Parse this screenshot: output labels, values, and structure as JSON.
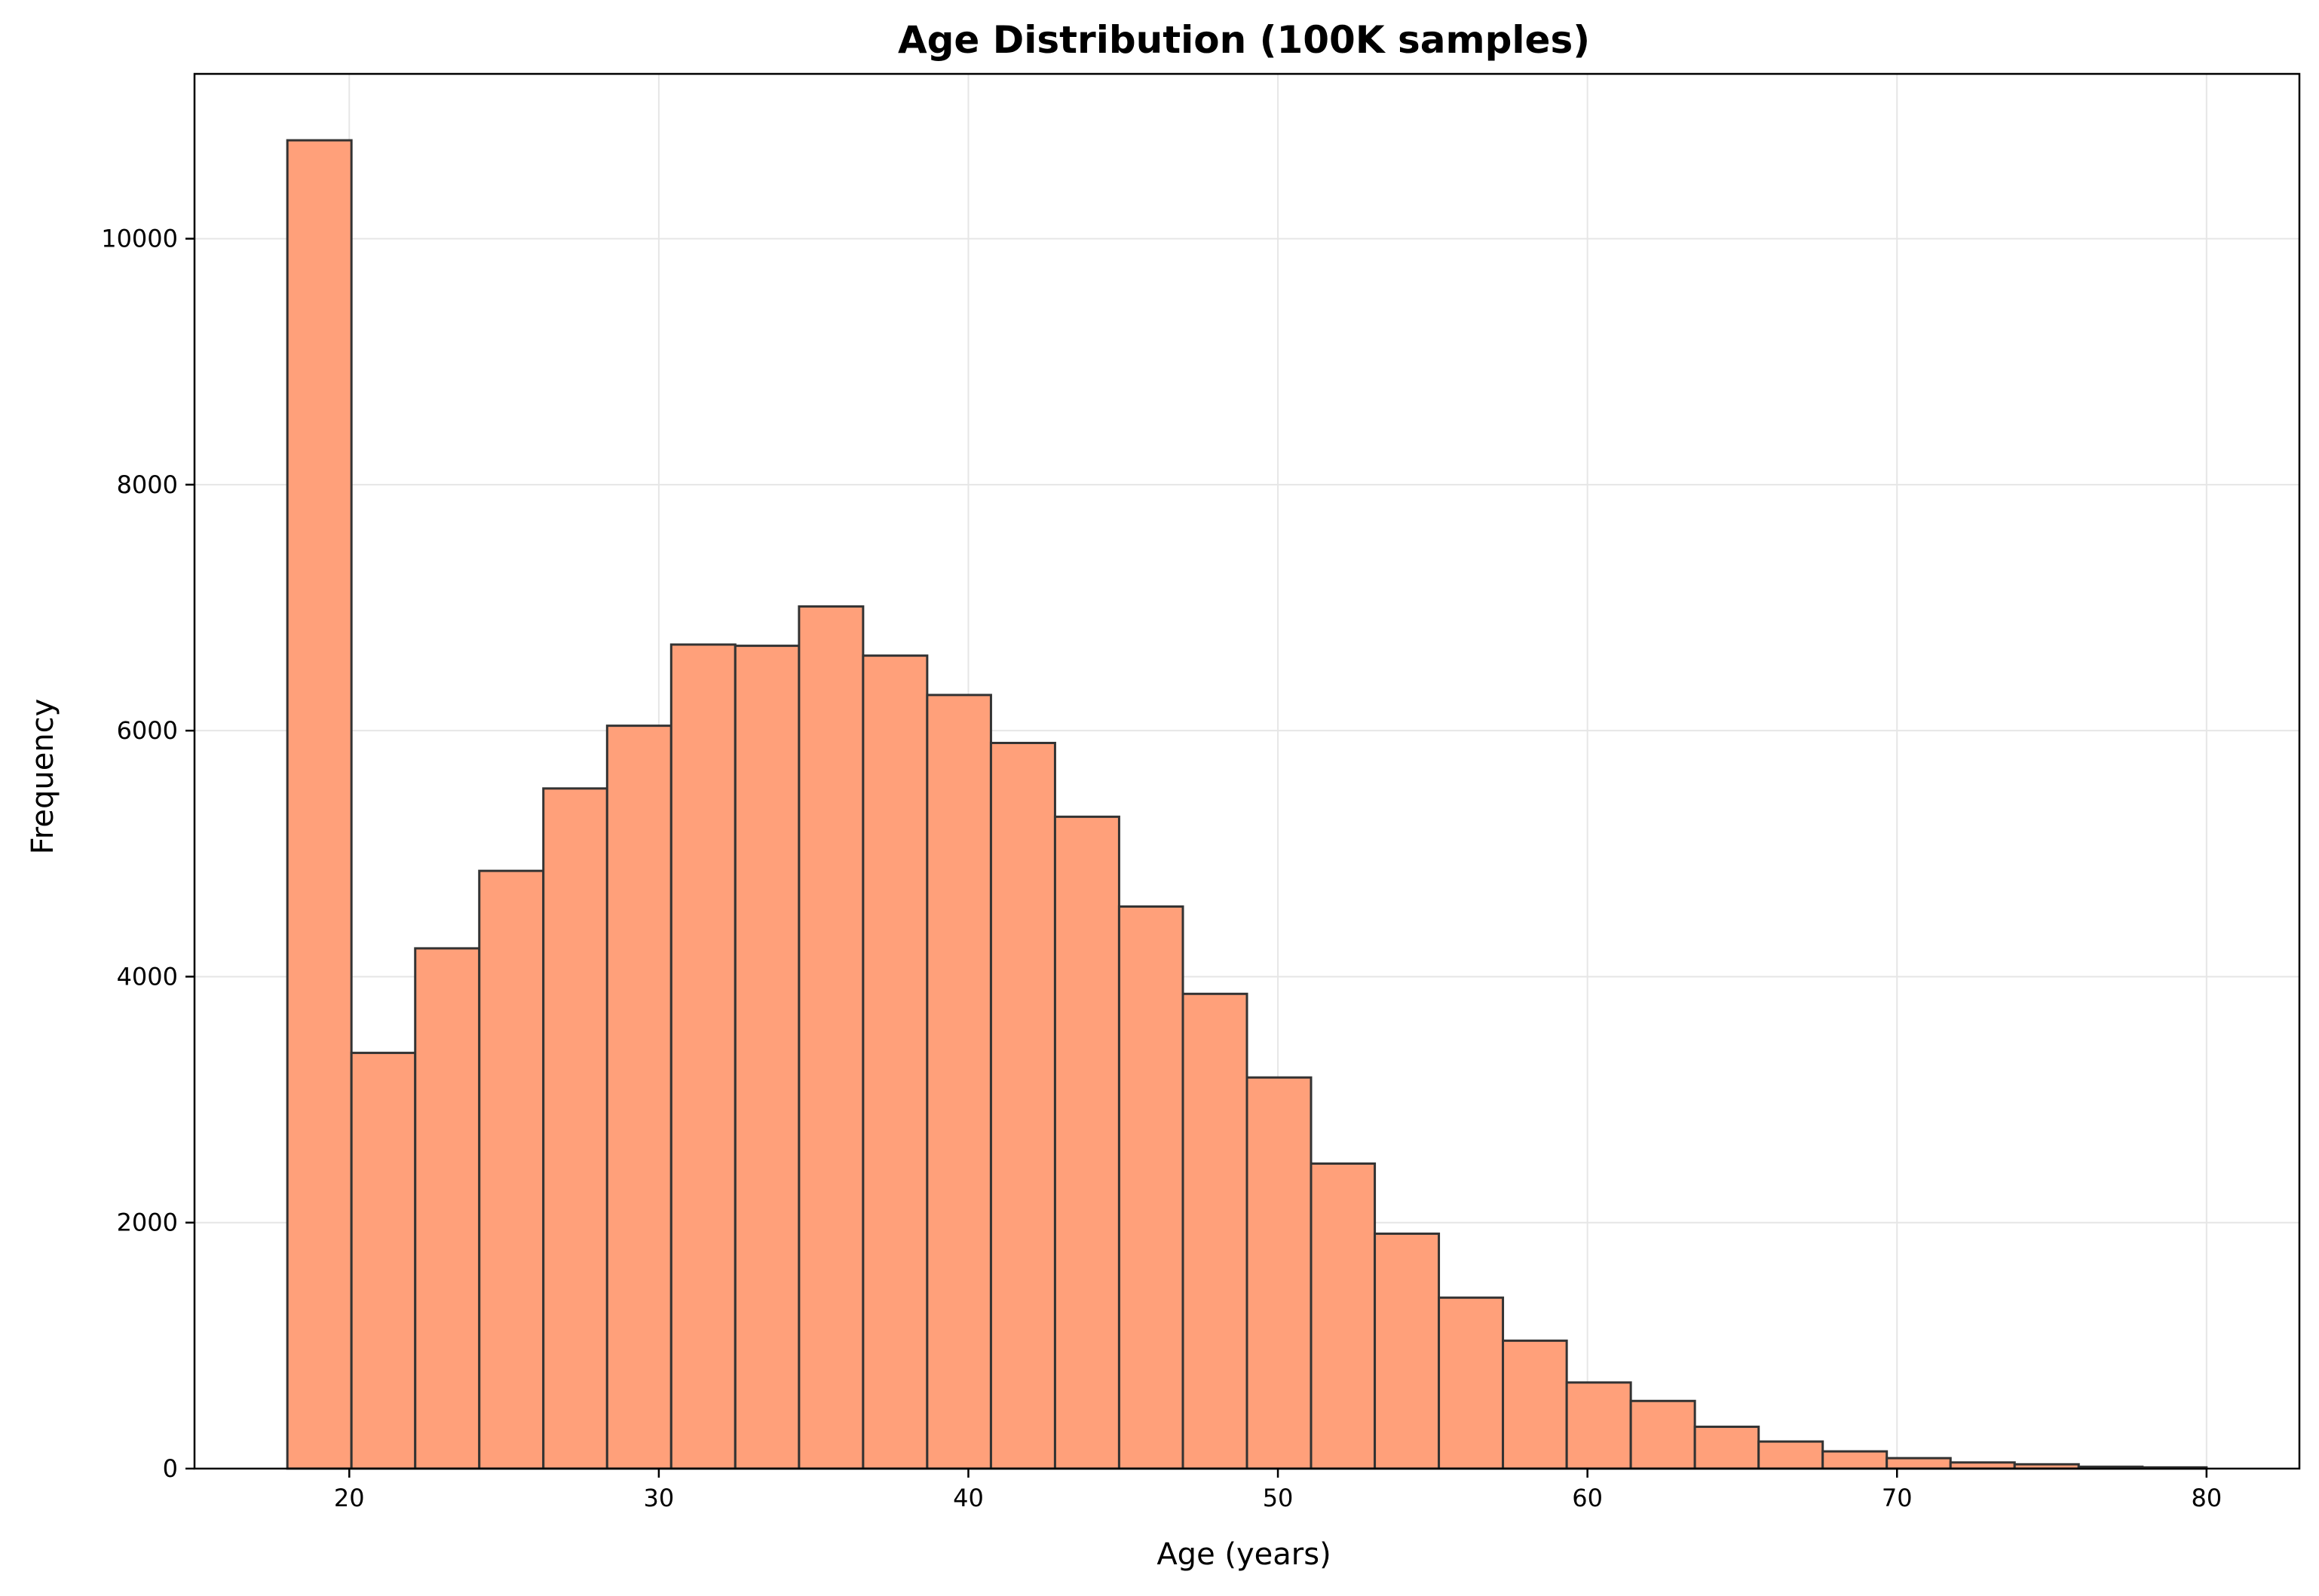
{
  "chart_data": {
    "type": "bar",
    "title": "Age Distribution (100K samples)",
    "xlabel": "Age (years)",
    "ylabel": "Frequency",
    "bin_edges": [
      18,
      20.07,
      22.13,
      24.2,
      26.27,
      28.33,
      30.4,
      32.47,
      34.53,
      36.6,
      38.67,
      40.73,
      42.8,
      44.87,
      46.93,
      49,
      51.07,
      53.13,
      55.2,
      57.27,
      59.33,
      61.4,
      63.47,
      65.53,
      67.6,
      69.67,
      71.73,
      73.8,
      75.87,
      77.93,
      80
    ],
    "values": [
      10800,
      3380,
      4230,
      4860,
      5530,
      6040,
      6700,
      6690,
      7010,
      6610,
      6290,
      5900,
      5300,
      4570,
      3860,
      3180,
      2480,
      1910,
      1390,
      1040,
      700,
      550,
      340,
      220,
      140,
      85,
      50,
      35,
      15,
      10
    ],
    "xlim": [
      15,
      83
    ],
    "ylim": [
      0,
      11340
    ],
    "xticks": [
      20,
      30,
      40,
      50,
      60,
      70,
      80
    ],
    "yticks": [
      0,
      2000,
      4000,
      6000,
      8000,
      10000
    ],
    "grid": true,
    "colors": {
      "bar_fill": "#FFA07A",
      "bar_edge": "#333333",
      "grid": "#e6e6e6",
      "axis": "#000000"
    }
  }
}
